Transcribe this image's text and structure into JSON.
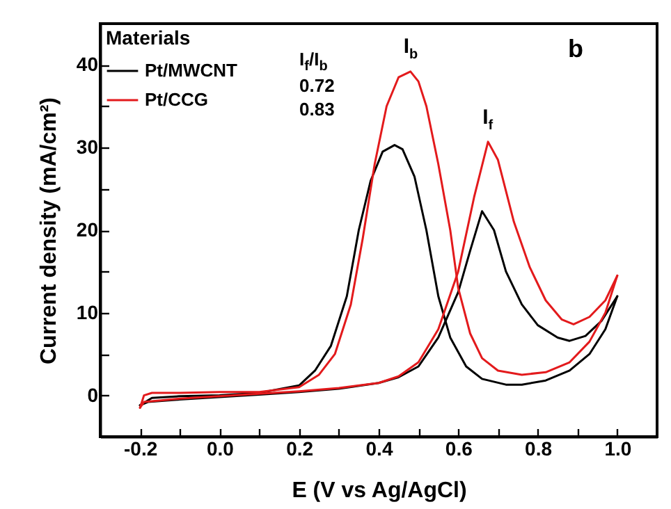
{
  "chart_data": {
    "type": "line",
    "xlabel": "E (V vs Ag/AgCl)",
    "ylabel": "Current density (mA/cm²)",
    "legend_title": "Materials",
    "legend": "top left",
    "xlim": [
      -0.3,
      1.1
    ],
    "xticks": [
      -0.2,
      {
        "value": -0.1,
        "label": null
      },
      {
        "value": 0,
        "label": "0.0"
      },
      {
        "value": 0.1,
        "label": null
      },
      0.2,
      {
        "value": 0.3,
        "label": null
      },
      0.4,
      {
        "value": 0.5,
        "label": null
      },
      0.6,
      {
        "value": 0.7,
        "label": null
      },
      0.8,
      {
        "value": 0.9,
        "label": null
      },
      {
        "value": 1,
        "label": "1.0"
      }
    ],
    "ylim": [
      -5,
      45
    ],
    "yticks": [
      0,
      {
        "value": 5,
        "label": null
      },
      10,
      {
        "value": 15,
        "label": null
      },
      20,
      {
        "value": 25,
        "label": null
      },
      30,
      {
        "value": 35,
        "label": null
      },
      40
    ],
    "grid": false,
    "marker": "none",
    "line_style": "solid",
    "series": [
      {
        "name": "Pt/MWCNT",
        "color": "#000000",
        "x": [
          -0.2,
          -0.18,
          -0.1,
          0.0,
          0.1,
          0.2,
          0.3,
          0.4,
          0.45,
          0.5,
          0.55,
          0.6,
          0.63,
          0.66,
          0.69,
          0.72,
          0.76,
          0.8,
          0.85,
          0.88,
          0.92,
          0.96,
          1.0
        ],
        "values": [
          -1.2,
          -0.8,
          -0.5,
          -0.2,
          0.1,
          0.4,
          0.8,
          1.5,
          2.2,
          3.5,
          7,
          12.5,
          17.5,
          22.3,
          20,
          15,
          11,
          8.5,
          7,
          6.6,
          7.2,
          9,
          12
        ]
      },
      {
        "color": "#000000",
        "x": [
          -0.2,
          -0.17,
          -0.1,
          0.0,
          0.1,
          0.2,
          0.24,
          0.28,
          0.32,
          0.35,
          0.38,
          0.41,
          0.44,
          0.46,
          0.49,
          0.52,
          0.55,
          0.58,
          0.62,
          0.66,
          0.72,
          0.76,
          0.82,
          0.88,
          0.93,
          0.97,
          1.0
        ],
        "values": [
          -1.2,
          -0.3,
          -0.1,
          0,
          0.3,
          1.2,
          3,
          6,
          12,
          20,
          26,
          29.5,
          30.3,
          29.8,
          26.5,
          20,
          12,
          7,
          3.5,
          2,
          1.3,
          1.3,
          1.8,
          3,
          5,
          8,
          12
        ]
      },
      {
        "name": "Pt/CCG",
        "color": "#e31a1c",
        "x": [
          -0.2,
          -0.19,
          -0.1,
          0.0,
          0.1,
          0.2,
          0.3,
          0.4,
          0.45,
          0.5,
          0.55,
          0.6,
          0.64,
          0.675,
          0.7,
          0.74,
          0.78,
          0.82,
          0.86,
          0.89,
          0.93,
          0.97,
          1.0
        ],
        "values": [
          -1.5,
          -0.8,
          -0.4,
          -0.1,
          0.2,
          0.5,
          0.9,
          1.5,
          2.3,
          4,
          8,
          15,
          24,
          30.7,
          28.5,
          21,
          15.5,
          11.5,
          9.2,
          8.6,
          9.5,
          11.5,
          14.5
        ]
      },
      {
        "color": "#e31a1c",
        "x": [
          -0.2,
          -0.19,
          -0.17,
          -0.1,
          0.0,
          0.1,
          0.2,
          0.25,
          0.29,
          0.33,
          0.36,
          0.39,
          0.42,
          0.45,
          0.48,
          0.5,
          0.52,
          0.55,
          0.58,
          0.6,
          0.63,
          0.66,
          0.7,
          0.76,
          0.82,
          0.88,
          0.93,
          0.97,
          1.0
        ],
        "values": [
          -1.5,
          0,
          0.3,
          0.3,
          0.4,
          0.4,
          1,
          2.5,
          5,
          11,
          19,
          28,
          35,
          38.5,
          39.2,
          38,
          35,
          28,
          20,
          13,
          7.5,
          4.5,
          3,
          2.5,
          2.8,
          4,
          6.5,
          10,
          14.5
        ]
      }
    ],
    "annotations": [
      "I$_{f}$/I$_{b}$",
      "0.72",
      "0.83",
      "b",
      {
        "text": "I$_{b}$",
        "x": 0.48,
        "y": 39.2
      },
      {
        "text": "I$_{f}$",
        "x": 0.675,
        "y": 30.7
      }
    ]
  }
}
